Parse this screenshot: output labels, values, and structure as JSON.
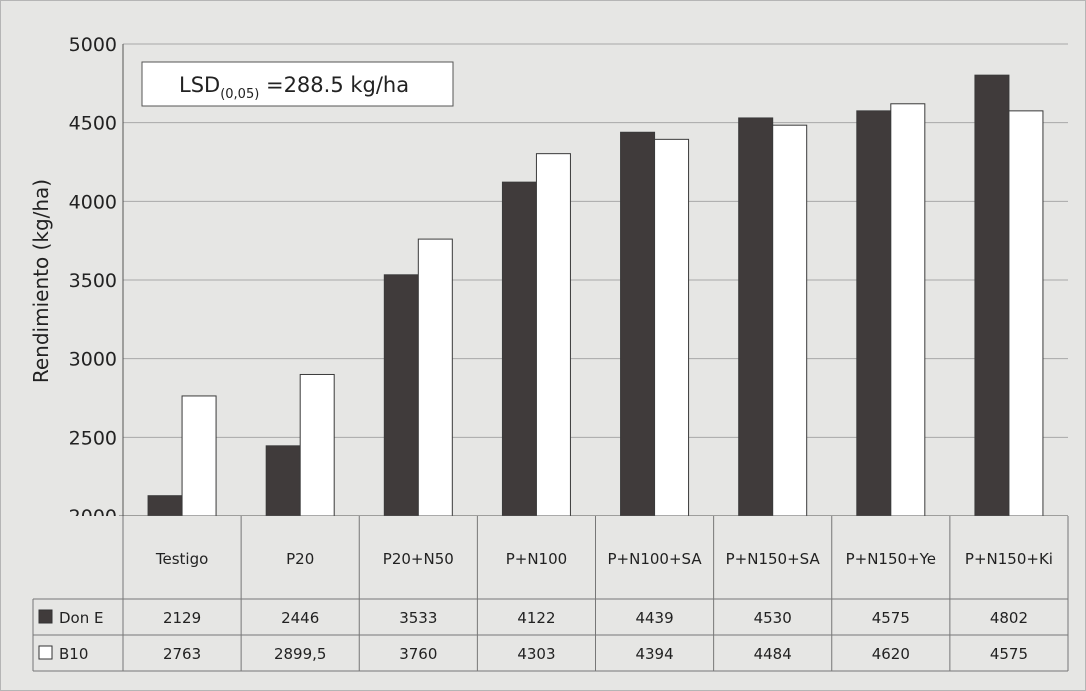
{
  "chart_data": {
    "type": "bar",
    "ylabel": "Rendimiento (kg/ha)",
    "ylim": [
      2000,
      5000
    ],
    "yticks": [
      2000,
      2500,
      3000,
      3500,
      4000,
      4500,
      5000
    ],
    "grid": true,
    "categories": [
      "Testigo",
      "P20",
      "P20+N50",
      "P+N100",
      "P+N100+SA",
      "P+N150+SA",
      "P+N150+Ye",
      "P+N150+Ki"
    ],
    "series": [
      {
        "name": "Don E",
        "color": "#403b3b",
        "values": [
          2129,
          2446,
          3533,
          4122,
          4439,
          4530,
          4575,
          4802
        ]
      },
      {
        "name": "B10",
        "color": "#ffffff",
        "values": [
          2763,
          2899.5,
          3760,
          4303,
          4394,
          4484,
          4620,
          4575
        ]
      }
    ],
    "table_values": [
      [
        "2129",
        "2446",
        "3533",
        "4122",
        "4439",
        "4530",
        "4575",
        "4802"
      ],
      [
        "2763",
        "2899,5",
        "3760",
        "4303",
        "4394",
        "4484",
        "4620",
        "4575"
      ]
    ],
    "annotation": {
      "lsd_prefix": "LSD",
      "lsd_subscript": "(0,05)",
      "lsd_value": " =288.5 kg/ha"
    }
  }
}
